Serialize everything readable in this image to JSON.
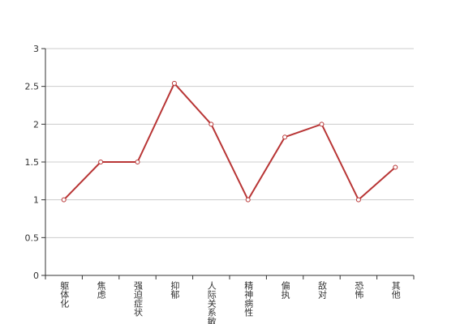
{
  "chart_data": {
    "type": "line",
    "categories": [
      "躯体化",
      "焦虑",
      "强迫症状",
      "抑郁",
      "人际关系敏感",
      "精神病性",
      "偏执",
      "敌对",
      "恐怖",
      "其他"
    ],
    "series": [
      {
        "color": "#b83535",
        "values": [
          1,
          1.5,
          1.5,
          2.54,
          2,
          1,
          1.83,
          2,
          1,
          1.43
        ]
      }
    ],
    "ylim": [
      0,
      3
    ],
    "yticks": [
      0,
      0.5,
      1,
      1.5,
      2,
      2.5,
      3
    ],
    "grid": true
  }
}
